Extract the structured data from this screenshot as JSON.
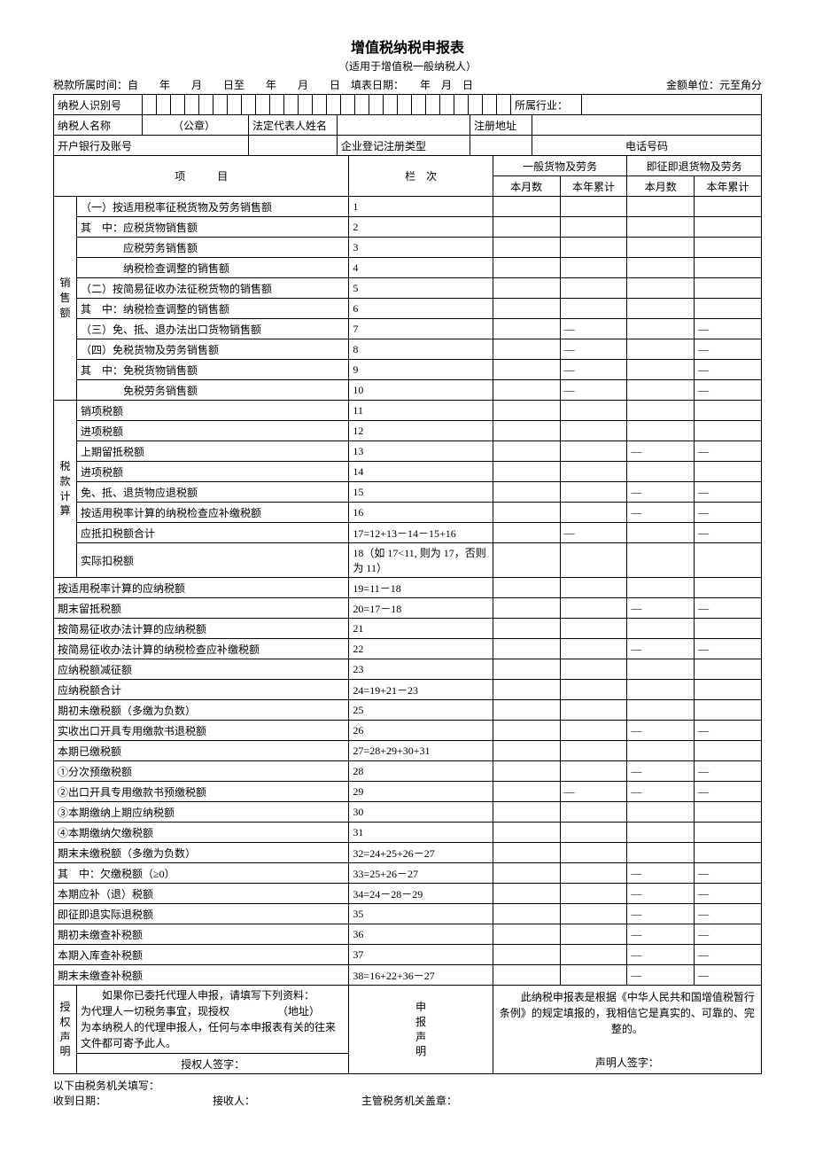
{
  "title": "增值税纳税申报表",
  "subtitle": "（适用于增值税一般纳税人）",
  "topline_left": "税款所属时间：自　　年　　月　　日至　　年　　月　　日　填表日期：　　年　月　日",
  "topline_right": "金额单位：元至角分",
  "labels": {
    "taxpayer_id": "纳税人识别号",
    "industry": "所属行业：",
    "taxpayer_name": "纳税人名称",
    "seal": "（公章）",
    "legal_rep": "法定代表人姓名",
    "reg_addr": "注册地址",
    "bank": "开户银行及账号",
    "ent_type": "企业登记注册类型",
    "phone": "电话号码",
    "item": "项　　　目",
    "col_no": "栏　次",
    "general_goods": "一般货物及劳务",
    "refund_goods": "即征即退货物及劳务",
    "this_month": "本月数",
    "year_total": "本年累计",
    "sales": "销售额",
    "tax_calc": "税款计算",
    "auth_decl": "授权声明",
    "filer_decl": "申报声明"
  },
  "rows": [
    {
      "label": "（一）按适用税率征税货物及劳务销售额",
      "col": "1",
      "d": [
        "",
        "",
        "",
        ""
      ]
    },
    {
      "label": "其　中：应税货物销售额",
      "col": "2",
      "d": [
        "",
        "",
        "",
        ""
      ]
    },
    {
      "label": "　　　　应税劳务销售额",
      "col": "3",
      "d": [
        "",
        "",
        "",
        ""
      ]
    },
    {
      "label": "　　　　纳税检查调整的销售额",
      "col": "4",
      "d": [
        "",
        "",
        "",
        ""
      ]
    },
    {
      "label": "（二）按简易征收办法征税货物的销售额",
      "col": "5",
      "d": [
        "",
        "",
        "",
        ""
      ]
    },
    {
      "label": "其　中：纳税检查调整的销售额",
      "col": "6",
      "d": [
        "",
        "",
        "",
        ""
      ]
    },
    {
      "label": "（三）免、抵、退办法出口货物销售额",
      "col": "7",
      "d": [
        "",
        "—",
        "",
        "—"
      ]
    },
    {
      "label": "（四）免税货物及劳务销售额",
      "col": "8",
      "d": [
        "",
        "—",
        "",
        "—"
      ]
    },
    {
      "label": "其　中：免税货物销售额",
      "col": "9",
      "d": [
        "",
        "—",
        "",
        "—"
      ]
    },
    {
      "label": "　　　　免税劳务销售额",
      "col": "10",
      "d": [
        "",
        "—",
        "",
        "—"
      ]
    },
    {
      "label": "销项税额",
      "col": "11",
      "d": [
        "",
        "",
        "",
        ""
      ]
    },
    {
      "label": "进项税额",
      "col": "12",
      "d": [
        "",
        "",
        "",
        ""
      ]
    },
    {
      "label": "上期留抵税额",
      "col": "13",
      "d": [
        "",
        "",
        "—",
        "—"
      ]
    },
    {
      "label": "进项税额",
      "col": "14",
      "d": [
        "",
        "",
        "",
        ""
      ]
    },
    {
      "label": "免、抵、退货物应退税额",
      "col": "15",
      "d": [
        "",
        "",
        "—",
        "—"
      ]
    },
    {
      "label": "按适用税率计算的纳税检查应补缴税额",
      "col": "16",
      "d": [
        "",
        "",
        "—",
        "—"
      ]
    },
    {
      "label": "应抵扣税额合计",
      "col": "17=12+13－14－15+16",
      "d": [
        "",
        "—",
        "",
        "—"
      ]
    },
    {
      "label": "实际扣税额",
      "col": "18（如 17<11, 则为 17，否则为 11）",
      "d": [
        "",
        "",
        "",
        ""
      ]
    },
    {
      "label": "按适用税率计算的应纳税额",
      "col": "19=11－18",
      "d": [
        "",
        "",
        "",
        ""
      ]
    },
    {
      "label": "期末留抵税额",
      "col": "20=17－18",
      "d": [
        "",
        "",
        "—",
        "—"
      ]
    },
    {
      "label": "按简易征收办法计算的应纳税额",
      "col": "21",
      "d": [
        "",
        "",
        "",
        ""
      ]
    },
    {
      "label": "按简易征收办法计算的纳税检查应补缴税额",
      "col": "22",
      "d": [
        "",
        "",
        "—",
        "—"
      ]
    },
    {
      "label": "应纳税额减征额",
      "col": "23",
      "d": [
        "",
        "",
        "",
        ""
      ]
    },
    {
      "label": "应纳税额合计",
      "col": "24=19+21－23",
      "d": [
        "",
        "",
        "",
        ""
      ]
    },
    {
      "label": "期初未缴税额（多缴为负数）",
      "col": "25",
      "d": [
        "",
        "",
        "",
        ""
      ]
    },
    {
      "label": "实收出口开具专用缴款书退税额",
      "col": "26",
      "d": [
        "",
        "",
        "—",
        "—"
      ]
    },
    {
      "label": "本期已缴税额",
      "col": "27=28+29+30+31",
      "d": [
        "",
        "",
        "",
        ""
      ]
    },
    {
      "label": "①分次预缴税额",
      "col": "28",
      "d": [
        "",
        "",
        "—",
        "—"
      ]
    },
    {
      "label": "②出口开具专用缴款书预缴税额",
      "col": "29",
      "d": [
        "",
        "—",
        "—",
        "—"
      ]
    },
    {
      "label": "③本期缴纳上期应纳税额",
      "col": "30",
      "d": [
        "",
        "",
        "",
        ""
      ]
    },
    {
      "label": "④本期缴纳欠缴税额",
      "col": "31",
      "d": [
        "",
        "",
        "",
        ""
      ]
    },
    {
      "label": "期末未缴税额（多缴为负数）",
      "col": "32=24+25+26－27",
      "d": [
        "",
        "",
        "",
        ""
      ]
    },
    {
      "label": "其　中：欠缴税额（≥0）",
      "col": "33=25+26－27",
      "d": [
        "",
        "",
        "—",
        "—"
      ]
    },
    {
      "label": "本期应补（退）税额",
      "col": "34=24－28－29",
      "d": [
        "",
        "",
        "—",
        "—"
      ]
    },
    {
      "label": "即征即退实际退税额",
      "col": "35",
      "d": [
        "",
        "",
        "—",
        "—"
      ]
    },
    {
      "label": "期初未缴查补税额",
      "col": "36",
      "d": [
        "",
        "",
        "—",
        "—"
      ]
    },
    {
      "label": "本期入库查补税额",
      "col": "37",
      "d": [
        "",
        "",
        "—",
        "—"
      ]
    },
    {
      "label": "期末未缴查补税额",
      "col": "38=16+22+36－27",
      "d": [
        "",
        "",
        "—",
        "—"
      ]
    }
  ],
  "auth_text": "　　如果你已委托代理人申报，请填写下列资料：　　　　　　为代理人一切税务事宜，现授权　　　　　（地址）　　　　　　　　　　　　为本纳税人的代理申报人，任何与本申报表有关的往来文件都可寄予此人。",
  "auth_sign": "授权人签字：",
  "decl_text": "　　此纳税申报表是根据《中华人民共和国增值税暂行条例》的规定填报的，我相信它是真实的、可靠的、完整的。",
  "decl_sign": "声明人签字：",
  "footer1": "以下由税务机关填写：",
  "footer2_a": "收到日期：",
  "footer2_b": "接收人：",
  "footer2_c": "主管税务机关盖章："
}
